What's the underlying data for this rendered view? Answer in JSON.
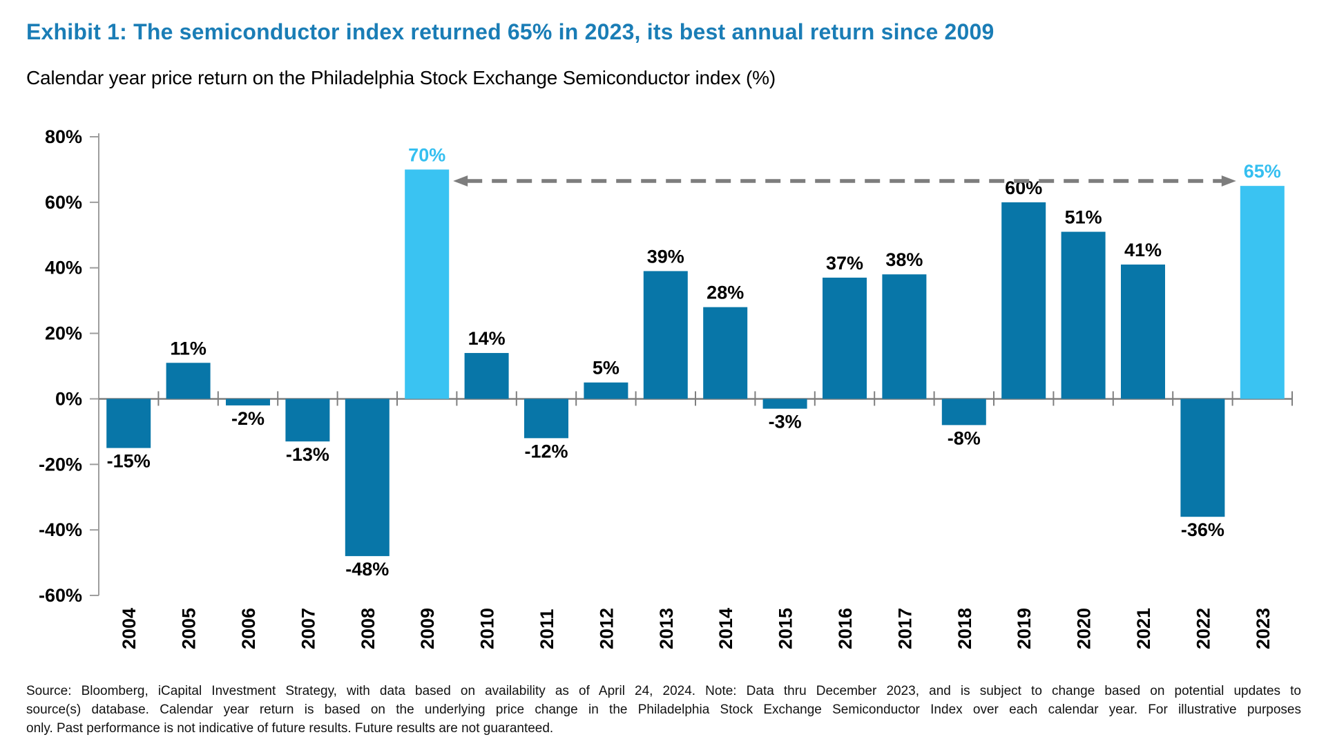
{
  "header": {
    "title": "Exhibit 1: The semiconductor index returned 65% in 2023, its best annual return since 2009",
    "subtitle": "Calendar year price return on the Philadelphia Stock Exchange Semiconductor index (%)"
  },
  "chart_data": {
    "type": "bar",
    "categories": [
      "2004",
      "2005",
      "2006",
      "2007",
      "2008",
      "2009",
      "2010",
      "2011",
      "2012",
      "2013",
      "2014",
      "2015",
      "2016",
      "2017",
      "2018",
      "2019",
      "2020",
      "2021",
      "2022",
      "2023"
    ],
    "values": [
      -15,
      11,
      -2,
      -13,
      -48,
      70,
      14,
      -12,
      5,
      39,
      28,
      -3,
      37,
      38,
      -8,
      60,
      51,
      41,
      -36,
      65
    ],
    "labels": [
      "-15%",
      "11%",
      "-2%",
      "-13%",
      "-48%",
      "70%",
      "14%",
      "-12%",
      "5%",
      "39%",
      "28%",
      "-3%",
      "37%",
      "38%",
      "-8%",
      "60%",
      "51%",
      "41%",
      "-36%",
      "65%"
    ],
    "highlight_years": [
      "2009",
      "2023"
    ],
    "title": "Calendar year price return on the Philadelphia Stock Exchange Semiconductor index (%)",
    "xlabel": "",
    "ylabel": "",
    "ylim": [
      -60,
      80
    ],
    "yticks": [
      "80%",
      "60%",
      "40%",
      "20%",
      "0%",
      "-20%",
      "-40%",
      "-60%"
    ],
    "ytick_values": [
      80,
      60,
      40,
      20,
      0,
      -20,
      -40,
      -60
    ],
    "grid": false,
    "legend": "none",
    "annotation": {
      "type": "double-headed-dashed-arrow",
      "from_year": "2009",
      "to_year": "2023",
      "y_value": 66.5
    },
    "colors": {
      "bar": "#0876a8",
      "highlight_bar": "#3ac3f2",
      "highlight_label": "#35bff0",
      "value_label": "#000000",
      "axis": "#9d9d9d",
      "zero_line": "#7f7f7f",
      "arrow": "#7d7d7d"
    }
  },
  "footnote": {
    "lines": [
      "Source: Bloomberg, iCapital Investment Strategy, with data based on availability as of April 24, 2024. Note: Data thru December 2023, and is subject to change based on potential updates to",
      "source(s) database. Calendar year return is based on the underlying price change in the Philadelphia Stock Exchange Semiconductor Index over each calendar year. For illustrative purposes",
      "only. Past performance is not indicative of future results. Future results are not guaranteed."
    ]
  },
  "colors": {
    "title": "#1a7db6",
    "text": "#000000"
  }
}
